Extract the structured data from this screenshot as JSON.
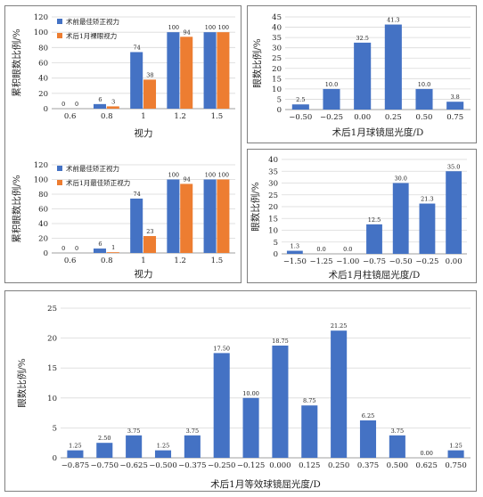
{
  "colors": {
    "blue": "#4472C4",
    "orange": "#ED7D31",
    "grid": "#d9d9d9",
    "axis": "#7f7f7f"
  },
  "chart_data": [
    {
      "type": "bar",
      "categories": [
        "0.6",
        "0.8",
        "1",
        "1.2",
        "1.5"
      ],
      "series": [
        {
          "name": "术前最佳矫正视力",
          "values": [
            0,
            6,
            74,
            100,
            100
          ]
        },
        {
          "name": "术后1月裸眼视力",
          "values": [
            0,
            3,
            38,
            94,
            100
          ]
        }
      ],
      "xlabel": "视力",
      "ylabel": "累积眼数比例/%",
      "ylim": [
        0,
        120
      ],
      "yticks": [
        "0",
        "20",
        "40",
        "60",
        "80",
        "100",
        "120"
      ],
      "grid": true,
      "legend": "top-left"
    },
    {
      "type": "bar",
      "categories": [
        "−0.50",
        "−0.25",
        "0.00",
        "0.25",
        "0.50",
        "0.75"
      ],
      "values": [
        2.5,
        10.0,
        32.5,
        41.3,
        10.0,
        3.8
      ],
      "labels": [
        "2.5",
        "10.0",
        "32.5",
        "41.3",
        "10.0",
        "3.8"
      ],
      "xlabel": "术后1月球镜屈光度/D",
      "ylabel": "眼数比例/%",
      "ylim": [
        0,
        45
      ],
      "yticks": [
        "0",
        "5",
        "10",
        "15",
        "20",
        "25",
        "30",
        "35",
        "40",
        "45"
      ],
      "grid": true
    },
    {
      "type": "bar",
      "categories": [
        "0.6",
        "0.8",
        "1",
        "1.2",
        "1.5"
      ],
      "series": [
        {
          "name": "术前最佳矫正视力",
          "values": [
            0,
            6,
            74,
            100,
            100
          ]
        },
        {
          "name": "术后1月最佳矫正视力",
          "values": [
            0,
            1,
            23,
            94,
            100
          ]
        }
      ],
      "xlabel": "视力",
      "ylabel": "累积眼数比例/%",
      "ylim": [
        0,
        120
      ],
      "yticks": [
        "0",
        "20",
        "40",
        "60",
        "80",
        "100",
        "120"
      ],
      "grid": true,
      "legend": "top-left"
    },
    {
      "type": "bar",
      "categories": [
        "−1.50",
        "−1.25",
        "−1.00",
        "−0.75",
        "−0.50",
        "−0.25",
        "0.00"
      ],
      "values": [
        1.3,
        0.0,
        0.0,
        12.5,
        30.0,
        21.3,
        35.0
      ],
      "labels": [
        "1.3",
        "0.0",
        "0.0",
        "12.5",
        "30.0",
        "21.3",
        "35.0"
      ],
      "xlabel": "术后1月柱镜屈光度/D",
      "ylabel": "眼数比例/%",
      "ylim": [
        0,
        40
      ],
      "yticks": [
        "0",
        "5",
        "10",
        "15",
        "20",
        "25",
        "30",
        "35",
        "40"
      ],
      "grid": true
    },
    {
      "type": "bar",
      "categories": [
        "−0.875",
        "−0.750",
        "−0.625",
        "−0.500",
        "−0.375",
        "−0.250",
        "−0.125",
        "0.000",
        "0.125",
        "0.250",
        "0.375",
        "0.500",
        "0.625",
        "0.750"
      ],
      "values": [
        1.25,
        2.5,
        3.75,
        1.25,
        3.75,
        17.5,
        10.0,
        18.75,
        8.75,
        21.25,
        6.25,
        3.75,
        0.0,
        1.25
      ],
      "labels": [
        "1.25",
        "2.50",
        "3.75",
        "1.25",
        "3.75",
        "17.50",
        "10.00",
        "18.75",
        "8.75",
        "21.25",
        "6.25",
        "3.75",
        "0.00",
        "1.25"
      ],
      "xlabel": "术后1月等效球镜屈光度/D",
      "ylabel": "眼数比例/%",
      "ylim": [
        0,
        25
      ],
      "yticks": [
        "0",
        "5",
        "10",
        "15",
        "20",
        "25"
      ],
      "grid": true
    }
  ]
}
